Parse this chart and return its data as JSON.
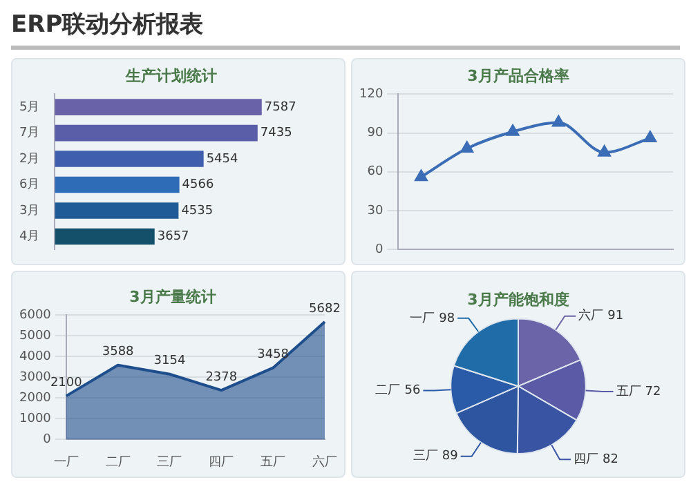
{
  "chart_data": [
    {
      "type": "other",
      "title": "ERP联动分析报表"
    },
    {
      "type": "bar",
      "title": "生产计划统计",
      "orientation": "horizontal",
      "categories": [
        "5月",
        "7月",
        "2月",
        "6月",
        "3月",
        "4月"
      ],
      "values": [
        7587,
        7435,
        5454,
        4566,
        4535,
        3657
      ],
      "colors": [
        "#6a62a8",
        "#5a5ea8",
        "#3f5fae",
        "#2f6cb8",
        "#1f5b96",
        "#14506a"
      ],
      "data_labels": true,
      "tick_labels": "y",
      "grid": false
    },
    {
      "type": "line",
      "title": "3月产品合格率",
      "categories": [
        null,
        null,
        null,
        null,
        null,
        null
      ],
      "values": [
        56,
        78,
        91,
        98,
        75,
        86
      ],
      "color": "#3a6db5",
      "marker": "triangle",
      "ylim": [
        0,
        120
      ],
      "yticks": [
        0,
        30,
        60,
        90,
        120
      ],
      "grid": "y",
      "tick_labels": "y"
    },
    {
      "type": "area",
      "title": "3月产量统计",
      "categories": [
        "一厂",
        "二厂",
        "三厂",
        "四厂",
        "五厂",
        "六厂"
      ],
      "values": [
        2100,
        3588,
        3154,
        2378,
        3458,
        5682
      ],
      "color": "#1f4e8c",
      "data_labels": true,
      "ylim": [
        0,
        6000
      ],
      "yticks": [
        0,
        1000,
        2000,
        3000,
        4000,
        5000,
        6000
      ],
      "grid": "y"
    },
    {
      "type": "pie",
      "title": "3月产能饱和度",
      "categories": [
        "六厂",
        "五厂",
        "四厂",
        "三厂",
        "二厂",
        "一厂"
      ],
      "values": [
        91,
        72,
        82,
        89,
        56,
        98
      ],
      "colors": [
        "#6c64a8",
        "#5a5aa6",
        "#3a54a4",
        "#2d55a0",
        "#2a5ba8",
        "#1f6ca8"
      ],
      "data_labels": true
    }
  ]
}
